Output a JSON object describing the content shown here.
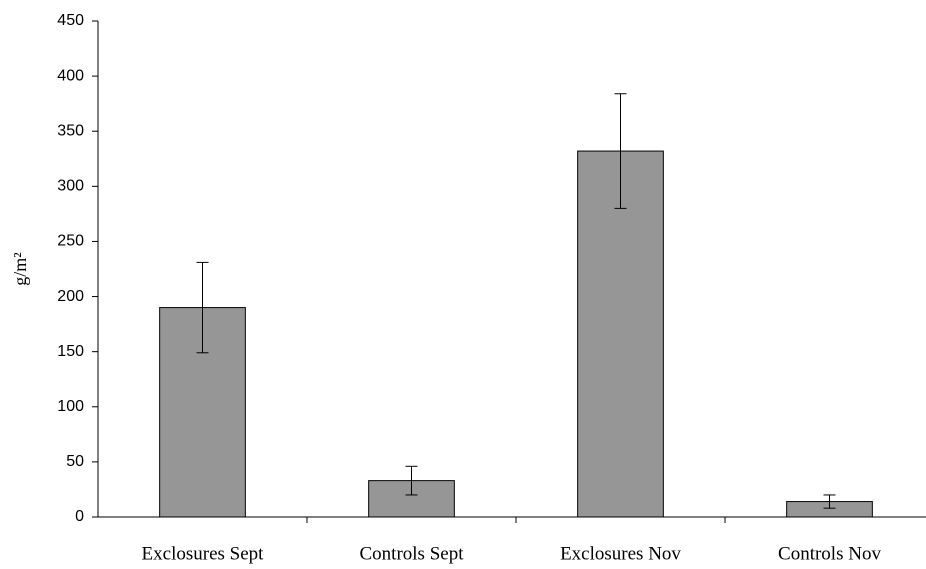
{
  "chart_data": {
    "type": "bar",
    "y_label": "g/m²",
    "categories": [
      "Exclosures Sept",
      "Controls Sept",
      "Exclosures Nov",
      "Controls Nov"
    ],
    "values": [
      190,
      33,
      332,
      14
    ],
    "errors": [
      41,
      13,
      52,
      6
    ],
    "color": "#969696",
    "ylim": [
      0,
      450
    ],
    "yticks": [
      0,
      50,
      100,
      150,
      200,
      250,
      300,
      350,
      400,
      450
    ],
    "grid": false
  }
}
